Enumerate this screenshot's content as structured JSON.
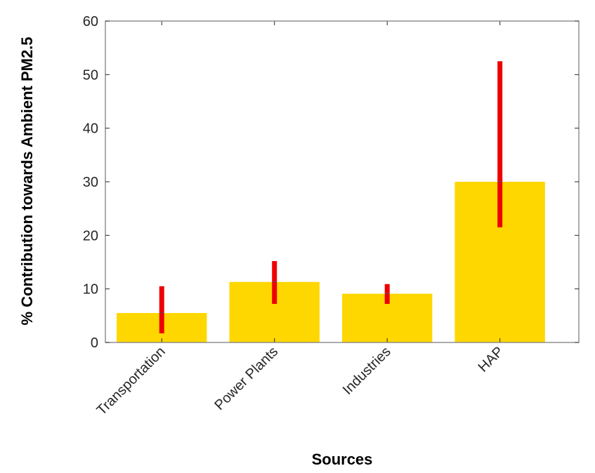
{
  "chart_data": {
    "type": "bar",
    "title": "",
    "xlabel": "Sources",
    "ylabel": "% Contribution towards Ambient PM2.5",
    "categories": [
      "Transportation",
      "Power Plants",
      "Industries",
      "HAP"
    ],
    "values": [
      5.5,
      11.3,
      9.1,
      30.0
    ],
    "error_low": [
      1.7,
      7.2,
      7.2,
      21.5
    ],
    "error_high": [
      10.5,
      15.2,
      10.9,
      52.5
    ],
    "ylim": [
      0,
      60
    ],
    "yticks": [
      0,
      10,
      20,
      30,
      40,
      50,
      60
    ],
    "xlim": [
      0.5,
      4.7
    ],
    "bar_width": 0.8,
    "grid": false,
    "colors": {
      "bar": "#FFD700",
      "error": "#EE0000",
      "axis": "#808080"
    }
  }
}
